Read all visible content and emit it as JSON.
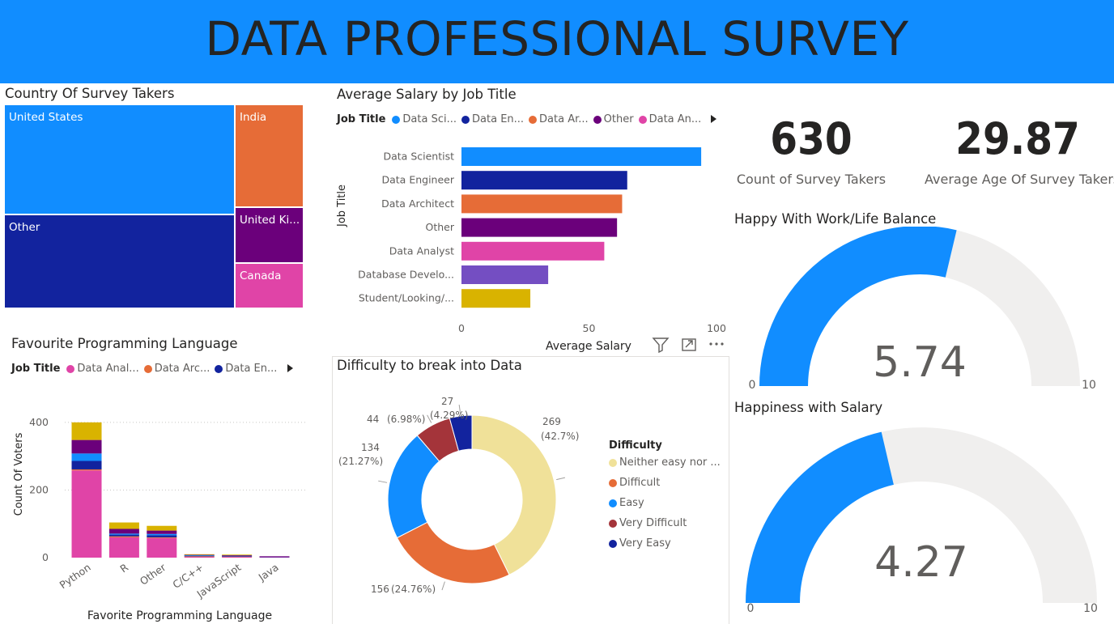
{
  "header": {
    "title": "DATA PROFESSIONAL SURVEY"
  },
  "treemap": {
    "title": "Country Of Survey Takers",
    "tiles": [
      {
        "label": "United States",
        "color": "#118DFF"
      },
      {
        "label": "Other",
        "color": "#12239E"
      },
      {
        "label": "India",
        "color": "#E66C37"
      },
      {
        "label": "United Ki...",
        "color": "#6B007B"
      },
      {
        "label": "Canada",
        "color": "#E044A7"
      }
    ]
  },
  "salary_chart": {
    "title": "Average Salary by Job Title",
    "legend_title": "Job Title",
    "legend_items": [
      {
        "label": "Data Sci...",
        "color": "#118DFF"
      },
      {
        "label": "Data En...",
        "color": "#12239E"
      },
      {
        "label": "Data Ar...",
        "color": "#E66C37"
      },
      {
        "label": "Other",
        "color": "#6B007B"
      },
      {
        "label": "Data An...",
        "color": "#E044A7"
      }
    ],
    "ylabel": "Job Title",
    "xlabel": "Average Salary"
  },
  "cards": {
    "count": {
      "value": "630",
      "label": "Count of Survey Takers"
    },
    "age": {
      "value": "29.87",
      "label": "Average Age Of Survey Takers"
    }
  },
  "gauge_worklife": {
    "title": "Happy With Work/Life Balance",
    "value_text": "5.74",
    "min": "0",
    "max": "10",
    "value": 5.74,
    "max_value": 10
  },
  "gauge_salary": {
    "title": "Happiness with Salary",
    "value_text": "4.27",
    "min": "0",
    "max": "10",
    "value": 4.27,
    "max_value": 10
  },
  "lang_chart": {
    "title": "Favourite Programming Language",
    "legend_title": "Job Title",
    "legend_items": [
      {
        "label": "Data Anal...",
        "color": "#E044A7"
      },
      {
        "label": "Data Arc...",
        "color": "#E66C37"
      },
      {
        "label": "Data En...",
        "color": "#12239E"
      }
    ],
    "xlabel": "Favorite Programming Language",
    "ylabel": "Count Of Voters"
  },
  "donut_chart": {
    "title": "Difficulty to break into Data",
    "legend_title": "Difficulty",
    "legend_items": [
      {
        "label": "Neither easy nor ...",
        "color": "#F0E199"
      },
      {
        "label": "Difficult",
        "color": "#E66C37"
      },
      {
        "label": "Easy",
        "color": "#118DFF"
      },
      {
        "label": "Very Difficult",
        "color": "#A4343A"
      },
      {
        "label": "Very Easy",
        "color": "#12239E"
      }
    ]
  },
  "chart_data": [
    {
      "type": "treemap",
      "title": "Country Of Survey Takers",
      "categories": [
        "United States",
        "Other",
        "India",
        "United Ki...",
        "Canada"
      ]
    },
    {
      "type": "bar",
      "orientation": "horizontal",
      "title": "Average Salary by Job Title",
      "xlabel": "Average Salary",
      "ylabel": "Job Title",
      "categories": [
        "Data Scientist",
        "Data Engineer",
        "Data Architect",
        "Other",
        "Data Analyst",
        "Database Develo...",
        "Student/Looking/..."
      ],
      "values": [
        94,
        65,
        63,
        61,
        56,
        34,
        27
      ],
      "colors": [
        "#118DFF",
        "#12239E",
        "#E66C37",
        "#6B007B",
        "#E044A7",
        "#744EC2",
        "#D9B300"
      ],
      "xlim": [
        0,
        100
      ],
      "xticks": [
        "0",
        "50",
        "100"
      ]
    },
    {
      "type": "bar",
      "stacked": true,
      "title": "Favourite Programming Language",
      "xlabel": "Favorite Programming Language",
      "ylabel": "Count Of Voters",
      "categories": [
        "Python",
        "R",
        "Other",
        "C/C++",
        "JavaScript",
        "Java"
      ],
      "series": [
        {
          "name": "Data Anal...",
          "color": "#E044A7",
          "values": [
            258,
            60,
            58,
            3,
            3,
            2
          ]
        },
        {
          "name": "Data Arc...",
          "color": "#E66C37",
          "values": [
            3,
            3,
            2,
            1,
            1,
            0
          ]
        },
        {
          "name": "Data En...",
          "color": "#12239E",
          "values": [
            25,
            5,
            6,
            2,
            1,
            1
          ]
        },
        {
          "color": "#118DFF",
          "values": [
            22,
            3,
            4,
            1,
            1,
            0
          ]
        },
        {
          "color": "#6B007B",
          "values": [
            40,
            14,
            10,
            2,
            1,
            1
          ]
        },
        {
          "color": "#D9B300",
          "values": [
            52,
            19,
            14,
            1,
            2,
            0
          ]
        }
      ],
      "ylim": [
        0,
        450
      ],
      "yticks": [
        "0",
        "200",
        "400"
      ],
      "grid": true
    },
    {
      "type": "pie",
      "donut": true,
      "title": "Difficulty to break into Data",
      "categories": [
        "Neither easy nor ...",
        "Difficult",
        "Easy",
        "Very Difficult",
        "Very Easy"
      ],
      "values": [
        269,
        156,
        134,
        44,
        27
      ],
      "percent_labels": [
        "(42.7%)",
        "(24.76%)",
        "(21.27%)",
        "(6.98%)",
        "(4.29%)"
      ],
      "colors": [
        "#F0E199",
        "#E66C37",
        "#118DFF",
        "#A4343A",
        "#12239E"
      ]
    }
  ]
}
